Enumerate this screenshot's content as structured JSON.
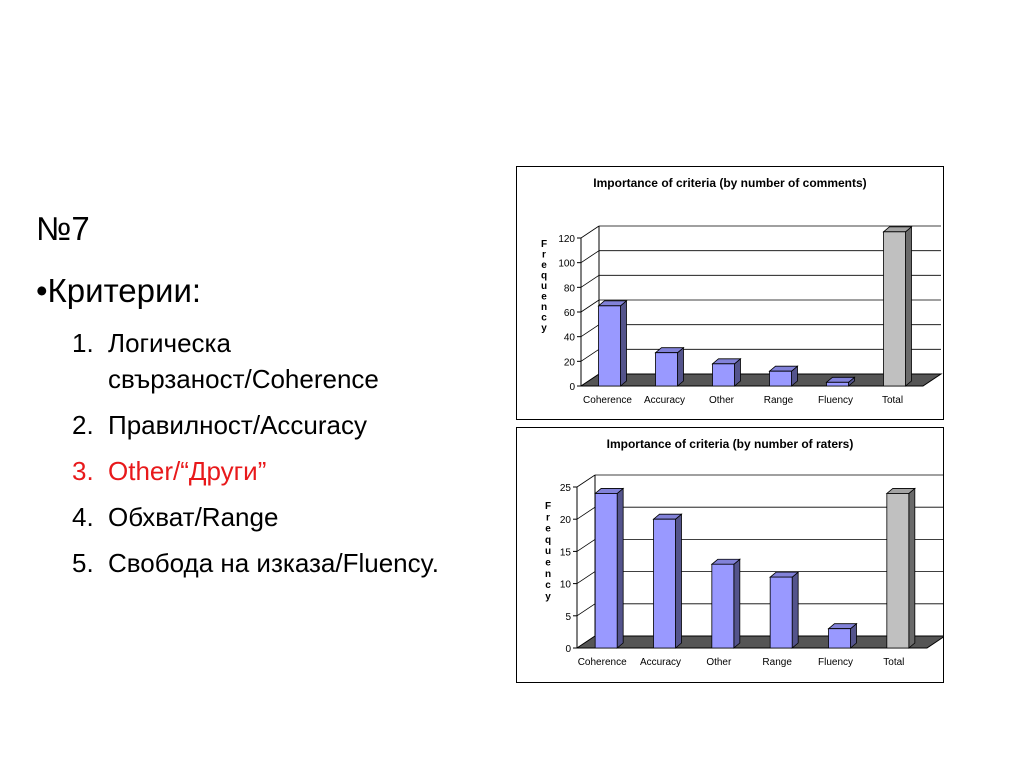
{
  "slide": {
    "heading": "№7",
    "subheading": "•Критерии:",
    "items": [
      {
        "num": "1.",
        "text": "Логическа свързаност/Coherence",
        "color": "#000000"
      },
      {
        "num": "2.",
        "text": "Правилност/Accuracy",
        "color": "#000000"
      },
      {
        "num": "3.",
        "text": "Other/“Други”",
        "color": "#e8191b"
      },
      {
        "num": "4.",
        "text": "Обхват/Range",
        "color": "#000000"
      },
      {
        "num": "5.",
        "text": "Свобода на изказа/Fluency.",
        "color": "#000000"
      }
    ]
  },
  "chart_data": [
    {
      "type": "bar",
      "title": "Importance of criteria (by number of comments)",
      "ylabel": "Frequency",
      "xlabel": "",
      "categories": [
        "Coherence",
        "Accuracy",
        "Other",
        "Range",
        "Fluency",
        "Total"
      ],
      "values": [
        65,
        27,
        18,
        12,
        3,
        125
      ],
      "ylim": [
        0,
        120
      ],
      "yticks": [
        "0",
        "20",
        "40",
        "60",
        "80",
        "100",
        "120"
      ],
      "grid": true,
      "colors": [
        "#9999ff",
        "#9999ff",
        "#9999ff",
        "#9999ff",
        "#9999ff",
        "#c0c0c0"
      ]
    },
    {
      "type": "bar",
      "title": "Importance of criteria (by number of raters)",
      "ylabel": "Frequency",
      "xlabel": "",
      "categories": [
        "Coherence",
        "Accuracy",
        "Other",
        "Range",
        "Fluency",
        "Total"
      ],
      "values": [
        24,
        20,
        13,
        11,
        3,
        24
      ],
      "ylim": [
        0,
        25
      ],
      "yticks": [
        "0",
        "5",
        "10",
        "15",
        "20",
        "25"
      ],
      "grid": true,
      "colors": [
        "#9999ff",
        "#9999ff",
        "#9999ff",
        "#9999ff",
        "#9999ff",
        "#c0c0c0"
      ]
    }
  ]
}
